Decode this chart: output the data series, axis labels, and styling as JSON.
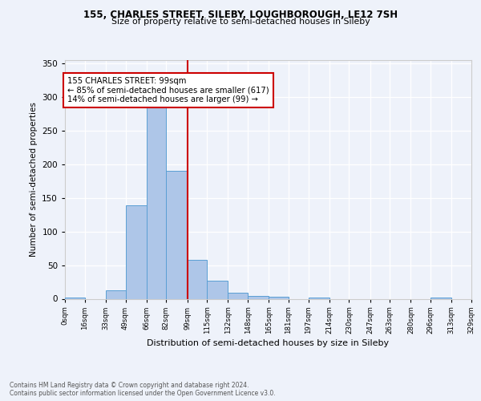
{
  "title1": "155, CHARLES STREET, SILEBY, LOUGHBOROUGH, LE12 7SH",
  "title2": "Size of property relative to semi-detached houses in Sileby",
  "xlabel": "Distribution of semi-detached houses by size in Sileby",
  "ylabel": "Number of semi-detached properties",
  "footnote": "Contains HM Land Registry data © Crown copyright and database right 2024.\nContains public sector information licensed under the Open Government Licence v3.0.",
  "bin_edges": [
    0,
    16,
    33,
    49,
    66,
    82,
    99,
    115,
    132,
    148,
    165,
    181,
    197,
    214,
    230,
    247,
    263,
    280,
    296,
    313,
    329
  ],
  "bar_heights": [
    2,
    0,
    12,
    139,
    287,
    190,
    58,
    27,
    9,
    4,
    3,
    0,
    2,
    0,
    0,
    0,
    0,
    0,
    2,
    0
  ],
  "bar_color": "#aec6e8",
  "bar_edge_color": "#5a9fd4",
  "property_value": 99,
  "annotation_text": "155 CHARLES STREET: 99sqm\n← 85% of semi-detached houses are smaller (617)\n14% of semi-detached houses are larger (99) →",
  "vline_color": "#cc0000",
  "box_edge_color": "#cc0000",
  "ylim": [
    0,
    355
  ],
  "background_color": "#eef2fa",
  "tick_labels": [
    "0sqm",
    "16sqm",
    "33sqm",
    "49sqm",
    "66sqm",
    "82sqm",
    "99sqm",
    "115sqm",
    "132sqm",
    "148sqm",
    "165sqm",
    "181sqm",
    "197sqm",
    "214sqm",
    "230sqm",
    "247sqm",
    "263sqm",
    "280sqm",
    "296sqm",
    "313sqm",
    "329sqm"
  ]
}
